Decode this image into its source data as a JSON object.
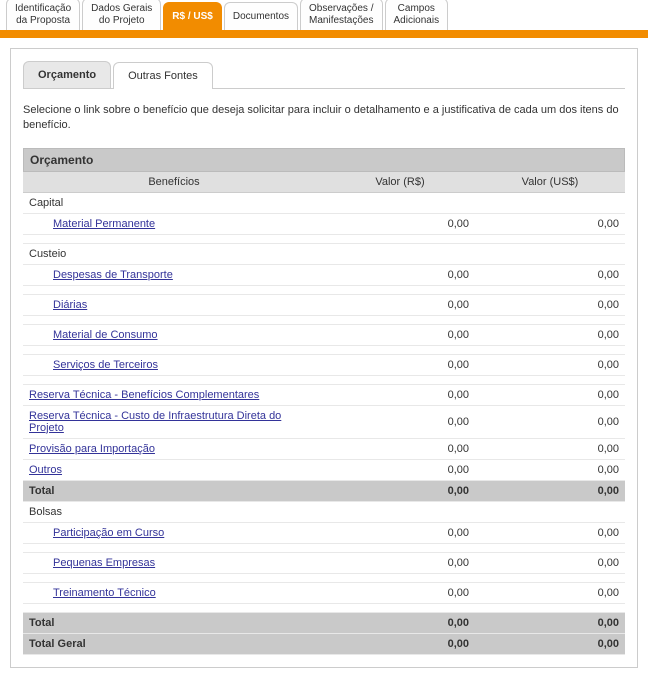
{
  "topnav": {
    "tabs": [
      {
        "label": "Identificação\nda Proposta"
      },
      {
        "label": "Dados Gerais\ndo Projeto"
      },
      {
        "label": "R$ / US$",
        "active": true
      },
      {
        "label": "Documentos"
      },
      {
        "label": "Observações /\nManifestações"
      },
      {
        "label": "Campos\nAdicionais"
      }
    ]
  },
  "subtabs": {
    "items": [
      {
        "label": "Orçamento",
        "active": true
      },
      {
        "label": "Outras Fontes"
      }
    ]
  },
  "instruction": "Selecione o link sobre o benefício que deseja solicitar para incluir o detalhamento e a justificativa de cada um dos itens do benefício.",
  "budget": {
    "title": "Orçamento",
    "columns": {
      "c1": "Benefícios",
      "c2": "Valor (R$)",
      "c3": "Valor (US$)"
    },
    "sections": [
      {
        "heading": "Capital",
        "rows": [
          {
            "label": "Material Permanente",
            "brl": "0,00",
            "usd": "0,00",
            "indent": true,
            "link": true
          }
        ]
      },
      {
        "heading": "Custeio",
        "rows": [
          {
            "label": "Despesas de Transporte",
            "brl": "0,00",
            "usd": "0,00",
            "indent": true,
            "link": true
          },
          {
            "label": "Diárias",
            "brl": "0,00",
            "usd": "0,00",
            "indent": true,
            "link": true
          },
          {
            "label": "Material de Consumo",
            "brl": "0,00",
            "usd": "0,00",
            "indent": true,
            "link": true
          },
          {
            "label": "Serviços de Terceiros",
            "brl": "0,00",
            "usd": "0,00",
            "indent": true,
            "link": true
          }
        ]
      },
      {
        "heading": null,
        "rows": [
          {
            "label": "Reserva Técnica - Benefícios Complementares",
            "brl": "0,00",
            "usd": "0,00",
            "indent": false,
            "link": true
          },
          {
            "label": "Reserva Técnica - Custo de Infraestrutura Direta do Projeto",
            "brl": "0,00",
            "usd": "0,00",
            "indent": false,
            "link": true
          },
          {
            "label": "Provisão para Importação",
            "brl": "0,00",
            "usd": "0,00",
            "indent": false,
            "link": true
          },
          {
            "label": "Outros",
            "brl": "0,00",
            "usd": "0,00",
            "indent": false,
            "link": true
          }
        ],
        "total": {
          "label": "Total",
          "brl": "0,00",
          "usd": "0,00"
        }
      },
      {
        "heading": "Bolsas",
        "rows": [
          {
            "label": "Participação em Curso",
            "brl": "0,00",
            "usd": "0,00",
            "indent": true,
            "link": true
          },
          {
            "label": "Pequenas Empresas",
            "brl": "0,00",
            "usd": "0,00",
            "indent": true,
            "link": true
          },
          {
            "label": "Treinamento Técnico",
            "brl": "0,00",
            "usd": "0,00",
            "indent": true,
            "link": true
          }
        ],
        "total": {
          "label": "Total",
          "brl": "0,00",
          "usd": "0,00"
        }
      }
    ],
    "grand": {
      "label": "Total Geral",
      "brl": "0,00",
      "usd": "0,00"
    }
  },
  "colors": {
    "accent": "#f28c00",
    "header_bg": "#c9c9c9",
    "subheader_bg": "#e0e0e0",
    "border": "#cccccc"
  }
}
